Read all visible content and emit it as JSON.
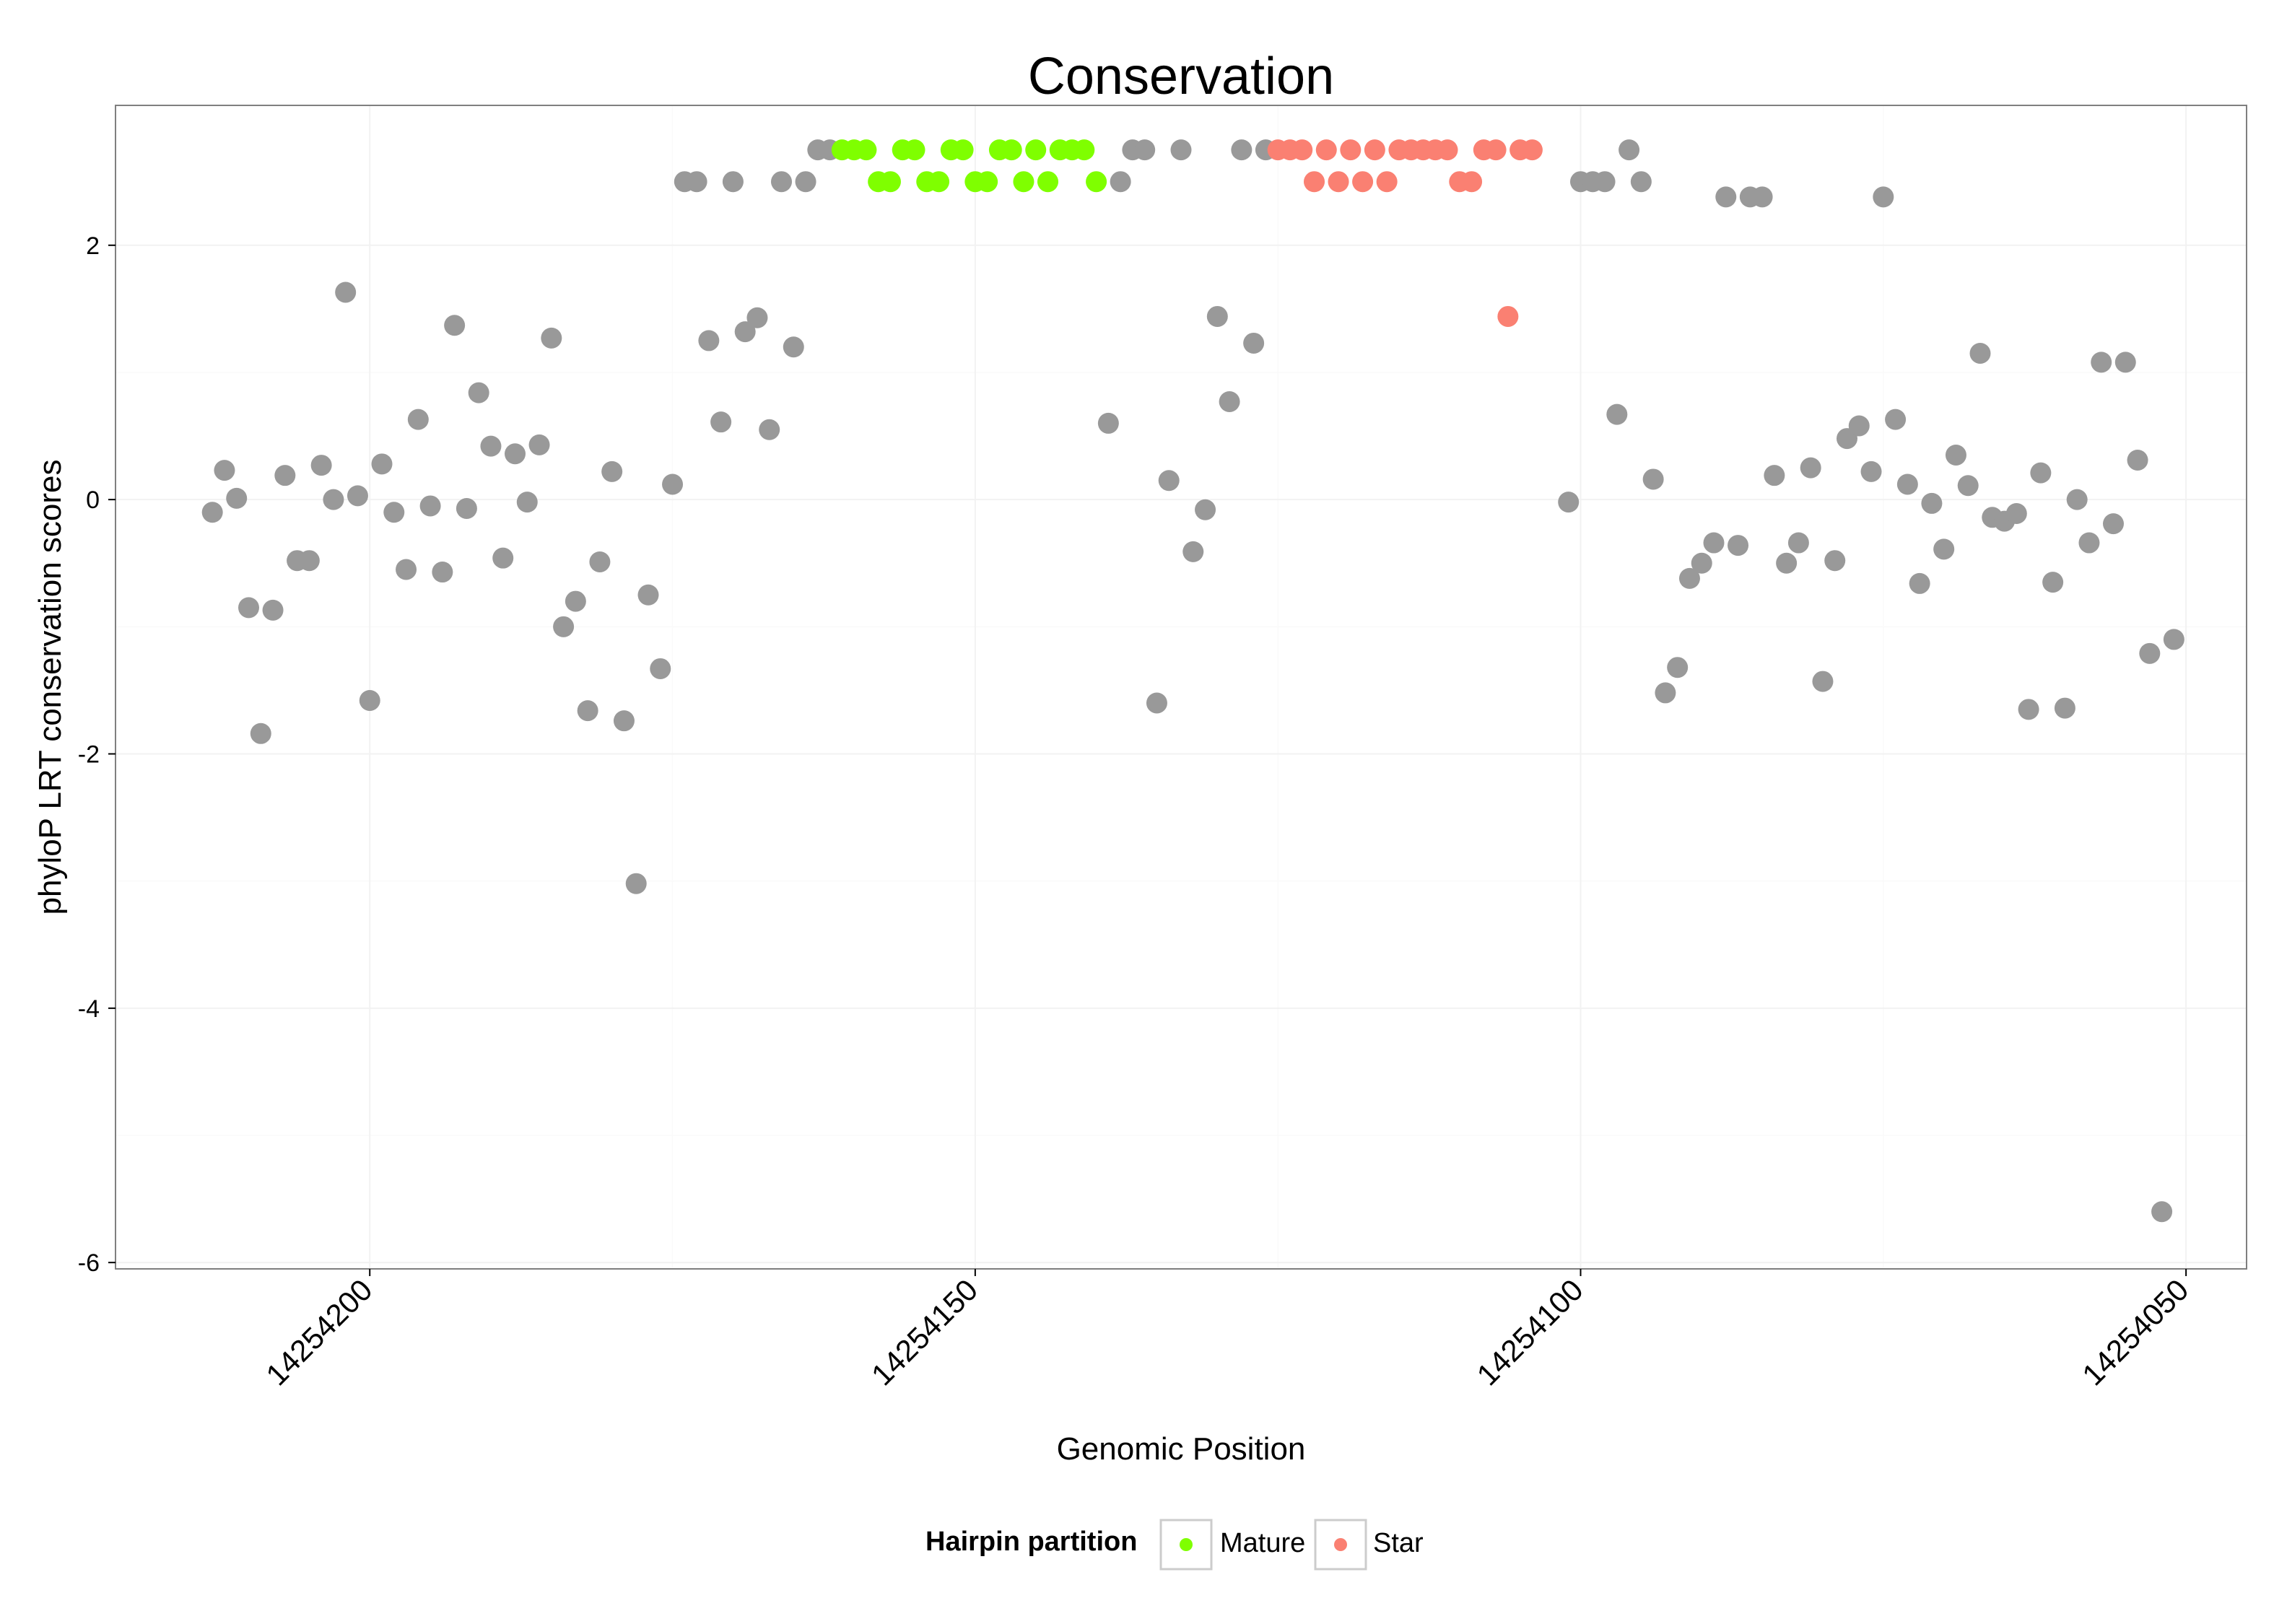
{
  "chart_data": {
    "type": "scatter",
    "title": "Conservation",
    "xlabel": "Genomic Position",
    "ylabel": "phyloP LRT conservation scores",
    "x_reversed": true,
    "xlim": [
      14254221,
      14254045
    ],
    "ylim": [
      -6.05,
      3.1
    ],
    "x_ticks": [
      14254200,
      14254150,
      14254100,
      14254050
    ],
    "x_tick_labels": [
      "14254200",
      "14254150",
      "14254100",
      "14254050"
    ],
    "y_ticks": [
      2,
      0,
      -2,
      -4,
      -6
    ],
    "y_tick_labels": [
      "2",
      "0",
      "-2",
      "-4",
      "-6"
    ],
    "grid": true,
    "legend": {
      "title": "Hairpin partition",
      "position": "bottom",
      "entries": [
        {
          "key": "mature",
          "label": "Mature"
        },
        {
          "key": "star",
          "label": "Star"
        }
      ]
    },
    "colors": {
      "other": "#999999",
      "mature": "#7fff00",
      "star": "#fa8072"
    },
    "series": [
      {
        "name": "Other",
        "key": "other",
        "points": [
          [
            14254213,
            -0.1
          ],
          [
            14254212,
            0.23
          ],
          [
            14254211,
            0.01
          ],
          [
            14254210,
            -0.85
          ],
          [
            14254209,
            -1.84
          ],
          [
            14254208,
            -0.87
          ],
          [
            14254207,
            0.19
          ],
          [
            14254206,
            -0.48
          ],
          [
            14254205,
            -0.48
          ],
          [
            14254204,
            0.27
          ],
          [
            14254203,
            0.0
          ],
          [
            14254202,
            1.63
          ],
          [
            14254201,
            0.03
          ],
          [
            14254200,
            -1.58
          ],
          [
            14254199,
            0.28
          ],
          [
            14254198,
            -0.1
          ],
          [
            14254197,
            -0.55
          ],
          [
            14254196,
            0.63
          ],
          [
            14254195,
            -0.05
          ],
          [
            14254194,
            -0.57
          ],
          [
            14254193,
            1.37
          ],
          [
            14254192,
            -0.07
          ],
          [
            14254191,
            0.84
          ],
          [
            14254190,
            0.42
          ],
          [
            14254189,
            -0.46
          ],
          [
            14254188,
            0.36
          ],
          [
            14254187,
            -0.02
          ],
          [
            14254186,
            0.43
          ],
          [
            14254185,
            1.27
          ],
          [
            14254184,
            -1.0
          ],
          [
            14254183,
            -0.8
          ],
          [
            14254182,
            -1.66
          ],
          [
            14254181,
            -0.49
          ],
          [
            14254180,
            0.22
          ],
          [
            14254179,
            -1.74
          ],
          [
            14254178,
            -3.02
          ],
          [
            14254177,
            -0.75
          ],
          [
            14254176,
            -1.33
          ],
          [
            14254175,
            0.12
          ],
          [
            14254174,
            2.5
          ],
          [
            14254173,
            2.5
          ],
          [
            14254172,
            1.25
          ],
          [
            14254171,
            0.61
          ],
          [
            14254170,
            2.5
          ],
          [
            14254169,
            1.32
          ],
          [
            14254168,
            1.43
          ],
          [
            14254167,
            0.55
          ],
          [
            14254166,
            2.5
          ],
          [
            14254165,
            1.2
          ],
          [
            14254164,
            2.5
          ],
          [
            14254163,
            2.75
          ],
          [
            14254162,
            2.75
          ],
          [
            14254138,
            2.5
          ],
          [
            14254139,
            0.6
          ],
          [
            14254137,
            2.75
          ],
          [
            14254136,
            2.75
          ],
          [
            14254135,
            -1.6
          ],
          [
            14254134,
            0.15
          ],
          [
            14254133,
            2.75
          ],
          [
            14254132,
            -0.41
          ],
          [
            14254131,
            -0.08
          ],
          [
            14254130,
            1.44
          ],
          [
            14254129,
            0.77
          ],
          [
            14254128,
            2.75
          ],
          [
            14254127,
            1.23
          ],
          [
            14254126,
            2.75
          ],
          [
            14254101,
            -0.02
          ],
          [
            14254100,
            2.5
          ],
          [
            14254099,
            2.5
          ],
          [
            14254098,
            2.5
          ],
          [
            14254097,
            0.67
          ],
          [
            14254096,
            2.75
          ],
          [
            14254095,
            2.5
          ],
          [
            14254094,
            0.16
          ],
          [
            14254093,
            -1.52
          ],
          [
            14254092,
            -1.32
          ],
          [
            14254091,
            -0.62
          ],
          [
            14254090,
            -0.5
          ],
          [
            14254089,
            -0.34
          ],
          [
            14254088,
            2.38
          ],
          [
            14254087,
            -0.36
          ],
          [
            14254086,
            2.38
          ],
          [
            14254085,
            2.38
          ],
          [
            14254084,
            0.19
          ],
          [
            14254083,
            -0.5
          ],
          [
            14254082,
            -0.34
          ],
          [
            14254081,
            0.25
          ],
          [
            14254080,
            -1.43
          ],
          [
            14254079,
            -0.48
          ],
          [
            14254078,
            0.48
          ],
          [
            14254077,
            0.58
          ],
          [
            14254076,
            0.22
          ],
          [
            14254075,
            2.38
          ],
          [
            14254074,
            0.63
          ],
          [
            14254073,
            0.12
          ],
          [
            14254072,
            -0.66
          ],
          [
            14254071,
            -0.03
          ],
          [
            14254070,
            -0.39
          ],
          [
            14254069,
            0.35
          ],
          [
            14254068,
            0.11
          ],
          [
            14254067,
            1.15
          ],
          [
            14254066,
            -0.14
          ],
          [
            14254065,
            -0.17
          ],
          [
            14254064,
            -0.11
          ],
          [
            14254063,
            -1.65
          ],
          [
            14254062,
            0.21
          ],
          [
            14254061,
            -0.65
          ],
          [
            14254060,
            -1.64
          ],
          [
            14254059,
            0.0
          ],
          [
            14254058,
            -0.34
          ],
          [
            14254057,
            1.08
          ],
          [
            14254056,
            -0.19
          ],
          [
            14254055,
            1.08
          ],
          [
            14254054,
            0.31
          ],
          [
            14254053,
            -1.21
          ],
          [
            14254052,
            -5.6
          ],
          [
            14254051,
            -1.1
          ]
        ]
      },
      {
        "name": "Mature",
        "key": "mature",
        "points": [
          [
            14254161,
            2.75
          ],
          [
            14254160,
            2.75
          ],
          [
            14254159,
            2.75
          ],
          [
            14254158,
            2.5
          ],
          [
            14254157,
            2.5
          ],
          [
            14254156,
            2.75
          ],
          [
            14254155,
            2.75
          ],
          [
            14254154,
            2.5
          ],
          [
            14254153,
            2.5
          ],
          [
            14254152,
            2.75
          ],
          [
            14254151,
            2.75
          ],
          [
            14254150,
            2.5
          ],
          [
            14254149,
            2.5
          ],
          [
            14254148,
            2.75
          ],
          [
            14254147,
            2.75
          ],
          [
            14254146,
            2.5
          ],
          [
            14254145,
            2.75
          ],
          [
            14254144,
            2.5
          ],
          [
            14254143,
            2.75
          ],
          [
            14254142,
            2.75
          ],
          [
            14254141,
            2.75
          ],
          [
            14254140,
            2.5
          ]
        ]
      },
      {
        "name": "Star",
        "key": "star",
        "points": [
          [
            14254125,
            2.75
          ],
          [
            14254124,
            2.75
          ],
          [
            14254123,
            2.75
          ],
          [
            14254122,
            2.5
          ],
          [
            14254121,
            2.75
          ],
          [
            14254120,
            2.5
          ],
          [
            14254119,
            2.75
          ],
          [
            14254118,
            2.5
          ],
          [
            14254117,
            2.75
          ],
          [
            14254116,
            2.5
          ],
          [
            14254115,
            2.75
          ],
          [
            14254114,
            2.75
          ],
          [
            14254113,
            2.75
          ],
          [
            14254112,
            2.75
          ],
          [
            14254111,
            2.75
          ],
          [
            14254110,
            2.5
          ],
          [
            14254109,
            2.5
          ],
          [
            14254108,
            2.75
          ],
          [
            14254107,
            2.75
          ],
          [
            14254106,
            1.44
          ],
          [
            14254105,
            2.75
          ],
          [
            14254104,
            2.75
          ]
        ]
      }
    ]
  }
}
